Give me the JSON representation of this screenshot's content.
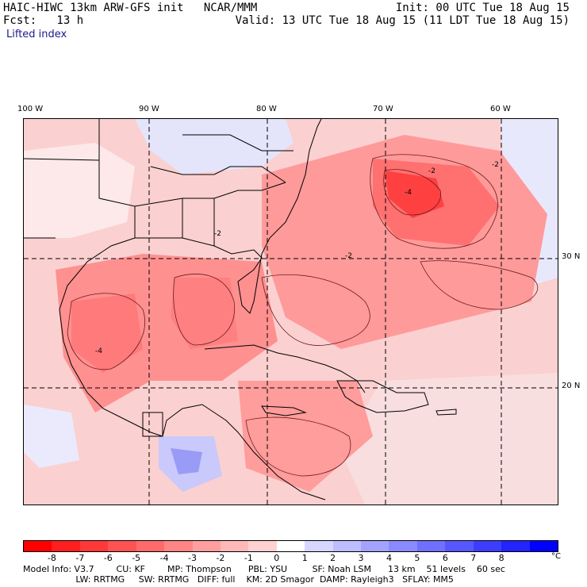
{
  "header": {
    "left_line1": "HAIC-HIWC 13km ARW-GFS init   NCAR/MMM",
    "left_line2": "Fcst:   13 h",
    "right_line1": "Init: 00 UTC Tue 18 Aug 15",
    "right_line2": "Valid: 13 UTC Tue 18 Aug 15 (11 LDT Tue 18 Aug 15)"
  },
  "field_name": "Lifted index",
  "map": {
    "longitude_labels": [
      "100 W",
      "90 W",
      "80 W",
      "70 W",
      "60 W"
    ],
    "latitude_labels": [
      "30 N",
      "20 N"
    ],
    "contour_labels": [
      "-4",
      "-2",
      "-2",
      "-4",
      "-2",
      "-2"
    ]
  },
  "colorbar": {
    "tick_labels": [
      "-8",
      "-7",
      "-6",
      "-5",
      "-4",
      "-3",
      "-2",
      "-1",
      "0",
      "1",
      "2",
      "3",
      "4",
      "5",
      "6",
      "7",
      "8"
    ],
    "unit": "°C",
    "colors": [
      "#ff0000",
      "#ff1f1f",
      "#ff3838",
      "#ff5252",
      "#ff6b6b",
      "#ff8585",
      "#ff9e9e",
      "#ffb8b8",
      "#ffd1d1",
      "#ffffff",
      "#d6d6ff",
      "#bdbdff",
      "#a3a3ff",
      "#8a8aff",
      "#7070ff",
      "#5757ff",
      "#3d3dff",
      "#2424ff",
      "#0000ff"
    ]
  },
  "model_info": {
    "line1": "Model Info: V3.7        CU: KF        MP: Thompson      PBL: YSU         SF: Noah LSM      13 km    51 levels    60 sec",
    "line2": "                   LW: RRTMG     SW: RRTMG   DIFF: full    KM: 2D Smagor  DAMP: Rayleigh3   SFLAY: MM5"
  }
}
